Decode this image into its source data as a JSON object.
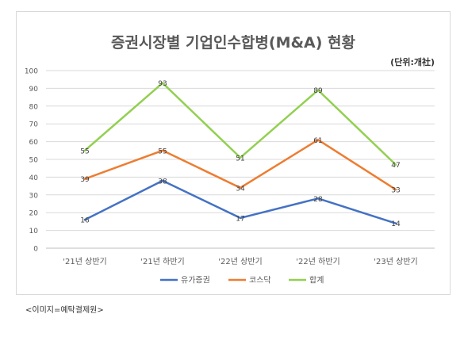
{
  "caption": "<이미지=예탁결제원>",
  "chart_data": {
    "type": "line",
    "title": "증권시장별 기업인수합병(M&A) 현황",
    "unit_note": "(단위:개社)",
    "categories": [
      "'21년 상반기",
      "'21년 하반기",
      "'22년 상반기",
      "'22년 하반기",
      "'23년 상반기"
    ],
    "ylim": [
      0,
      100
    ],
    "yticks": [
      0,
      10,
      20,
      30,
      40,
      50,
      60,
      70,
      80,
      90,
      100
    ],
    "grid": true,
    "legend_position": "bottom",
    "series": [
      {
        "name": "유가증권",
        "color": "#4472c4",
        "values": [
          16,
          38,
          17,
          28,
          14
        ]
      },
      {
        "name": "코스닥",
        "color": "#ed7d31",
        "values": [
          39,
          55,
          34,
          61,
          33
        ]
      },
      {
        "name": "합계",
        "color": "#92d050",
        "values": [
          55,
          93,
          51,
          89,
          47
        ]
      }
    ]
  }
}
